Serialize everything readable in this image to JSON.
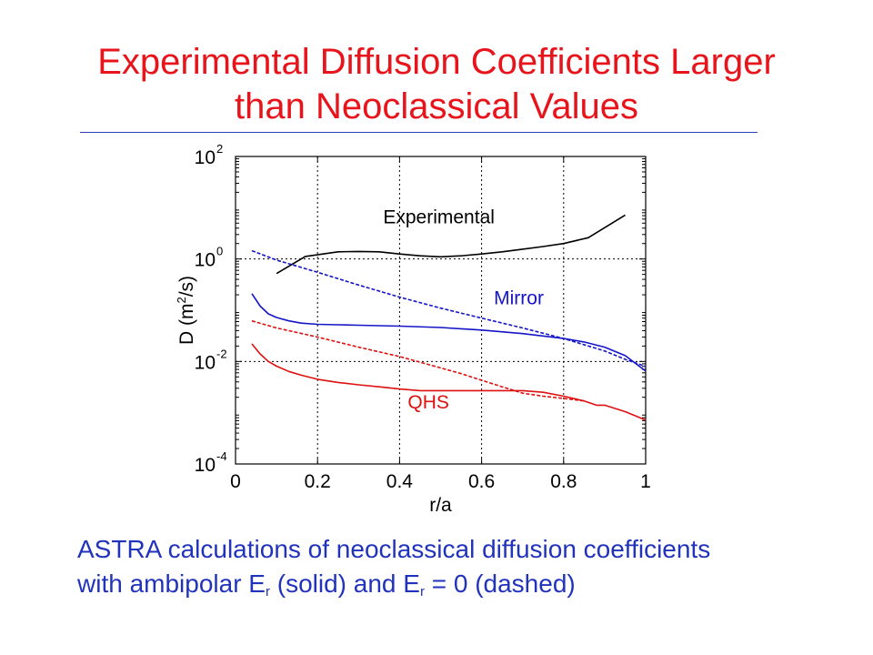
{
  "slide": {
    "title_line1": "Experimental Diffusion Coefficients Larger",
    "title_line2": "than Neoclassical Values",
    "caption_line1": "ASTRA calculations of neoclassical diffusion coefficients",
    "caption_l2_a": "with ambipolar E",
    "caption_l2_sub1": "r",
    "caption_l2_b": " (solid) and E",
    "caption_l2_sub2": "r",
    "caption_l2_c": " = 0 (dashed)",
    "colors": {
      "title": "#e8141c",
      "caption": "#2233bb",
      "rule": "#2c3cb8"
    }
  },
  "chart_data": {
    "type": "line",
    "xlabel": "r/a",
    "ylabel_pre": "D (m",
    "ylabel_sup": "2",
    "ylabel_post": "/s)",
    "xlim": [
      0,
      1
    ],
    "ylim_log10": [
      -4,
      2
    ],
    "y_scale": "log",
    "grid": "dashed",
    "x_ticks": [
      0,
      0.2,
      0.4,
      0.6,
      0.8,
      1
    ],
    "x_tick_labels": [
      "0",
      "0.2",
      "0.4",
      "0.6",
      "0.8",
      "1"
    ],
    "y_tick_exponents": [
      2,
      0,
      -2,
      -4
    ],
    "y_tick_base": "10",
    "y_tick_sup_labels": [
      "2",
      "0",
      "-2",
      "-4"
    ],
    "annotations": [
      {
        "text": "Experimental",
        "x": 0.36,
        "y": 5.0,
        "color": "#000000"
      },
      {
        "text": "Mirror",
        "x": 0.63,
        "y": 0.13,
        "color": "#1515c8"
      },
      {
        "text": "QHS",
        "x": 0.42,
        "y": 0.0012,
        "color": "#dd1111"
      }
    ],
    "series": [
      {
        "name": "Experimental",
        "style": "solid",
        "color": "#000000",
        "x": [
          0.1,
          0.17,
          0.25,
          0.3,
          0.35,
          0.4,
          0.45,
          0.5,
          0.55,
          0.6,
          0.65,
          0.7,
          0.75,
          0.8,
          0.86,
          0.95
        ],
        "y": [
          0.52,
          1.12,
          1.38,
          1.4,
          1.38,
          1.25,
          1.15,
          1.1,
          1.15,
          1.25,
          1.38,
          1.55,
          1.75,
          2.0,
          2.6,
          7.2
        ]
      },
      {
        "name": "Mirror",
        "style": "dashed",
        "color": "#1515c8",
        "x": [
          0.04,
          0.1,
          0.2,
          0.3,
          0.4,
          0.5,
          0.6,
          0.7,
          0.8,
          0.9,
          0.95,
          1.0
        ],
        "y": [
          1.45,
          0.95,
          0.55,
          0.31,
          0.18,
          0.11,
          0.07,
          0.045,
          0.028,
          0.016,
          0.011,
          0.008
        ]
      },
      {
        "name": "Mirror",
        "style": "solid",
        "color": "#1515c8",
        "x": [
          0.04,
          0.06,
          0.08,
          0.1,
          0.13,
          0.16,
          0.2,
          0.25,
          0.3,
          0.4,
          0.5,
          0.6,
          0.7,
          0.8,
          0.85,
          0.9,
          0.95,
          1.0
        ],
        "y": [
          0.21,
          0.12,
          0.085,
          0.072,
          0.062,
          0.056,
          0.053,
          0.052,
          0.051,
          0.049,
          0.046,
          0.041,
          0.035,
          0.028,
          0.024,
          0.019,
          0.013,
          0.0065
        ]
      },
      {
        "name": "QHS",
        "style": "dashed",
        "color": "#dd1111",
        "x": [
          0.04,
          0.1,
          0.2,
          0.3,
          0.4,
          0.5,
          0.55,
          0.6,
          0.65,
          0.7,
          0.75,
          0.8,
          0.85
        ],
        "y": [
          0.062,
          0.045,
          0.03,
          0.019,
          0.0125,
          0.0075,
          0.0058,
          0.0043,
          0.0032,
          0.0024,
          0.0021,
          0.0019,
          0.0017
        ]
      },
      {
        "name": "QHS",
        "style": "solid",
        "color": "#dd1111",
        "x": [
          0.04,
          0.06,
          0.08,
          0.1,
          0.13,
          0.16,
          0.2,
          0.25,
          0.3,
          0.35,
          0.4,
          0.45,
          0.5,
          0.55,
          0.6,
          0.65,
          0.7,
          0.75,
          0.8,
          0.85,
          0.88,
          0.9,
          0.93,
          0.95,
          1.0
        ],
        "y": [
          0.022,
          0.014,
          0.01,
          0.0081,
          0.0064,
          0.0054,
          0.0045,
          0.0039,
          0.0035,
          0.0032,
          0.0029,
          0.0027,
          0.0027,
          0.0027,
          0.0027,
          0.0027,
          0.0027,
          0.0025,
          0.0021,
          0.0017,
          0.0014,
          0.0014,
          0.00118,
          0.00105,
          0.00072
        ]
      }
    ]
  }
}
